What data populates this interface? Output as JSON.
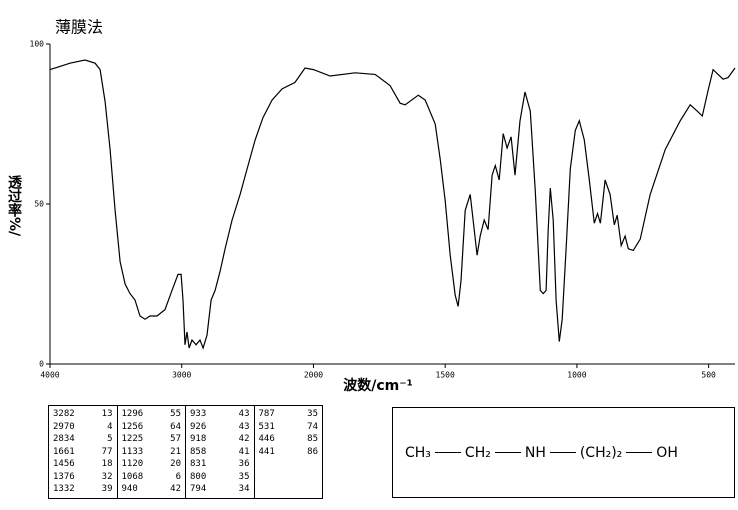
{
  "chart_data": {
    "type": "line",
    "title": "薄膜法",
    "xlabel": "波数/cm⁻¹",
    "ylabel": "透过率%/",
    "xlim": [
      4000,
      400
    ],
    "x_break": 2000,
    "ylim": [
      0,
      100
    ],
    "xticks": [
      4000,
      3000,
      2000,
      1500,
      1000,
      500
    ],
    "yticks": [
      0,
      50,
      100
    ],
    "grid": false,
    "color": "#000000",
    "x": [
      4000,
      3924,
      3848,
      3734,
      3658,
      3620,
      3582,
      3544,
      3506,
      3468,
      3430,
      3393,
      3355,
      3317,
      3279,
      3241,
      3188,
      3127,
      3074,
      3028,
      3005,
      2990,
      2975,
      2960,
      2944,
      2922,
      2891,
      2861,
      2838,
      2808,
      2777,
      2747,
      2709,
      2671,
      2618,
      2557,
      2497,
      2443,
      2383,
      2314,
      2238,
      2140,
      2064,
      2000,
      1937,
      1842,
      1766,
      1709,
      1671,
      1652,
      1602,
      1576,
      1538,
      1519,
      1500,
      1481,
      1462,
      1451,
      1440,
      1424,
      1405,
      1390,
      1379,
      1367,
      1352,
      1337,
      1322,
      1310,
      1295,
      1280,
      1265,
      1250,
      1235,
      1216,
      1197,
      1177,
      1158,
      1139,
      1128,
      1117,
      1109,
      1101,
      1090,
      1079,
      1067,
      1056,
      1041,
      1025,
      1006,
      991,
      972,
      953,
      934,
      922,
      911,
      893,
      874,
      858,
      847,
      832,
      817,
      805,
      786,
      760,
      722,
      665,
      608,
      570,
      543,
      524,
      502,
      483,
      464,
      445,
      426,
      400
    ],
    "values": [
      92,
      93,
      94,
      95,
      94,
      92,
      82,
      67,
      48,
      32,
      25,
      22,
      20,
      15,
      14,
      15,
      15,
      17,
      23,
      28,
      28,
      20,
      6,
      10,
      5,
      7.5,
      6,
      7.5,
      5,
      9,
      20,
      23,
      29,
      36,
      45,
      53,
      62,
      70,
      77,
      82.5,
      86,
      88,
      92.5,
      92,
      90,
      91,
      90.5,
      87,
      81.5,
      81,
      84,
      82.5,
      75,
      64,
      51,
      34,
      21.5,
      18,
      26,
      48,
      53,
      42,
      34,
      40,
      45,
      42,
      59,
      62,
      57.5,
      72,
      67.5,
      71,
      59,
      76,
      85,
      79,
      54,
      23,
      22,
      23,
      42,
      55,
      45,
      20,
      7,
      14,
      36,
      61,
      73,
      76,
      70,
      57.5,
      44,
      47,
      44,
      57.5,
      53,
      43.5,
      46.5,
      37,
      40,
      36,
      35.5,
      39,
      53,
      67,
      76,
      81,
      79,
      77.5,
      85.5,
      92,
      90.5,
      89,
      89.5,
      92.5
    ]
  },
  "peak_table": {
    "columns": [
      [
        [
          3282,
          13
        ],
        [
          2970,
          4
        ],
        [
          2834,
          5
        ],
        [
          1661,
          77
        ],
        [
          1456,
          18
        ],
        [
          1376,
          32
        ],
        [
          1332,
          39
        ]
      ],
      [
        [
          1296,
          55
        ],
        [
          1256,
          64
        ],
        [
          1225,
          57
        ],
        [
          1133,
          21
        ],
        [
          1120,
          20
        ],
        [
          1068,
          6
        ],
        [
          940,
          42
        ]
      ],
      [
        [
          933,
          43
        ],
        [
          926,
          43
        ],
        [
          918,
          42
        ],
        [
          858,
          41
        ],
        [
          831,
          36
        ],
        [
          800,
          35
        ],
        [
          794,
          34
        ]
      ],
      [
        [
          787,
          35
        ],
        [
          531,
          74
        ],
        [
          446,
          85
        ],
        [
          441,
          86
        ]
      ]
    ]
  },
  "formula": [
    "CH₃",
    "CH₂",
    "NH",
    "(CH₂)₂",
    "OH"
  ]
}
